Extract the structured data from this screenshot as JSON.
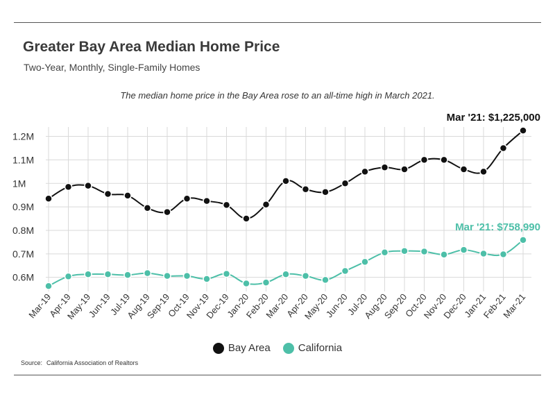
{
  "header": {
    "title": "Greater Bay Area Median Home Price",
    "subtitle": "Two-Year, Monthly, Single-Family Homes",
    "annotation": "The median home price in the Bay Area rose to an all-time high in March 2021."
  },
  "footer": {
    "source_label": "Source:",
    "source_text": "California Association of Realtors"
  },
  "chart_data": {
    "type": "line",
    "title": "Greater Bay Area Median Home Price",
    "subtitle": "Two-Year, Monthly, Single-Family Homes",
    "xlabel": "",
    "ylabel": "",
    "categories": [
      "Mar-19",
      "Apr-19",
      "May-19",
      "Jun-19",
      "Jul-19",
      "Aug-19",
      "Sep-19",
      "Oct-19",
      "Nov-19",
      "Dec-19",
      "Jan-20",
      "Feb-20",
      "Mar-20",
      "Apr-20",
      "May-20",
      "Jun-20",
      "Jul-20",
      "Aug-20",
      "Sep-20",
      "Oct-20",
      "Nov-20",
      "Dec-20",
      "Jan-21",
      "Feb-21",
      "Mar-21"
    ],
    "y_ticks": [
      {
        "value": 600000,
        "label": "0.6M"
      },
      {
        "value": 700000,
        "label": "0.7M"
      },
      {
        "value": 800000,
        "label": "0.8M"
      },
      {
        "value": 900000,
        "label": "0.9M"
      },
      {
        "value": 1000000,
        "label": "1M"
      },
      {
        "value": 1100000,
        "label": "1.1M"
      },
      {
        "value": 1200000,
        "label": "1.2M"
      }
    ],
    "ylim": [
      540000,
      1240000
    ],
    "grid": true,
    "legend_position": "bottom-center",
    "series": [
      {
        "name": "Bay Area",
        "color": "#111111",
        "values": [
          935000,
          985000,
          990000,
          955000,
          948000,
          895000,
          878000,
          935000,
          925000,
          908000,
          850000,
          910000,
          1010000,
          975000,
          963000,
          1000000,
          1050000,
          1068000,
          1060000,
          1100000,
          1100000,
          1060000,
          1050000,
          1150000,
          1225000
        ],
        "end_label": "Mar '21: $1,225,000"
      },
      {
        "name": "California",
        "color": "#4dbfa8",
        "values": [
          563000,
          604000,
          613000,
          613000,
          610000,
          618000,
          606000,
          606000,
          593000,
          615000,
          574000,
          578000,
          613000,
          606000,
          589000,
          627000,
          666000,
          706000,
          712000,
          710000,
          697000,
          717000,
          701000,
          698000,
          758990
        ],
        "end_label": "Mar '21: $758,990"
      }
    ]
  }
}
